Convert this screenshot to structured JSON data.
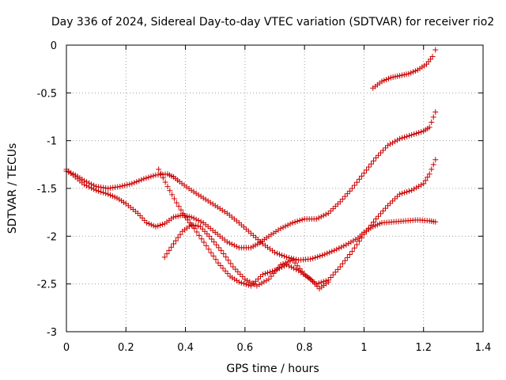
{
  "chart_data": {
    "type": "scatter",
    "title": "Day 336 of 2024, Sidereal Day-to-day VTEC variation (SDTVAR) for receiver rio2",
    "xlabel": "GPS time / hours",
    "ylabel": "SDTVAR / TECUs",
    "xlim": [
      0,
      1.4
    ],
    "ylim": [
      -3,
      0
    ],
    "x_ticks": [
      0,
      0.2,
      0.4,
      0.6,
      0.8,
      1,
      1.2,
      1.4
    ],
    "x_tick_labels": [
      "0",
      "0.2",
      "0.4",
      "0.6",
      "0.8",
      "1",
      "1.2",
      "1.4"
    ],
    "y_ticks": [
      0,
      -0.5,
      -1,
      -1.5,
      -2,
      -2.5,
      -3
    ],
    "y_tick_labels": [
      "0",
      "-0.5",
      "-1",
      "-1.5",
      "-2",
      "-2.5",
      "-3"
    ],
    "grid": true,
    "marker": "plus",
    "colors": {
      "series": "#cc0000",
      "grid": "#a0a0a0",
      "axis": "#000000"
    },
    "series": [
      {
        "points": [
          [
            0,
            -1.32
          ],
          [
            0.03,
            -1.36
          ],
          [
            0.06,
            -1.42
          ],
          [
            0.1,
            -1.48
          ],
          [
            0.14,
            -1.5
          ],
          [
            0.18,
            -1.48
          ],
          [
            0.22,
            -1.45
          ],
          [
            0.26,
            -1.4
          ],
          [
            0.3,
            -1.36
          ],
          [
            0.34,
            -1.35
          ],
          [
            0.36,
            -1.38
          ],
          [
            0.38,
            -1.43
          ],
          [
            0.42,
            -1.52
          ],
          [
            0.46,
            -1.6
          ],
          [
            0.5,
            -1.68
          ],
          [
            0.54,
            -1.76
          ],
          [
            0.58,
            -1.86
          ],
          [
            0.62,
            -1.97
          ],
          [
            0.66,
            -2.08
          ],
          [
            0.7,
            -2.17
          ],
          [
            0.74,
            -2.22
          ],
          [
            0.78,
            -2.25
          ],
          [
            0.82,
            -2.24
          ],
          [
            0.86,
            -2.2
          ],
          [
            0.9,
            -2.15
          ],
          [
            0.94,
            -2.09
          ],
          [
            0.98,
            -2.02
          ],
          [
            1.0,
            -1.96
          ],
          [
            1.03,
            -1.9
          ],
          [
            1.06,
            -1.86
          ],
          [
            1.1,
            -1.85
          ],
          [
            1.14,
            -1.84
          ],
          [
            1.18,
            -1.83
          ],
          [
            1.22,
            -1.84
          ],
          [
            1.24,
            -1.85
          ]
        ]
      },
      {
        "points": [
          [
            0,
            -1.3
          ],
          [
            0.03,
            -1.38
          ],
          [
            0.06,
            -1.46
          ],
          [
            0.1,
            -1.52
          ],
          [
            0.14,
            -1.56
          ],
          [
            0.17,
            -1.6
          ],
          [
            0.2,
            -1.66
          ],
          [
            0.24,
            -1.76
          ],
          [
            0.27,
            -1.86
          ],
          [
            0.3,
            -1.9
          ],
          [
            0.33,
            -1.87
          ],
          [
            0.36,
            -1.8
          ],
          [
            0.39,
            -1.78
          ],
          [
            0.42,
            -1.8
          ],
          [
            0.46,
            -1.86
          ],
          [
            0.5,
            -1.96
          ],
          [
            0.54,
            -2.06
          ],
          [
            0.58,
            -2.12
          ],
          [
            0.62,
            -2.12
          ],
          [
            0.65,
            -2.07
          ],
          [
            0.68,
            -2.0
          ],
          [
            0.72,
            -1.92
          ],
          [
            0.76,
            -1.86
          ],
          [
            0.8,
            -1.82
          ],
          [
            0.84,
            -1.82
          ],
          [
            0.88,
            -1.76
          ],
          [
            0.92,
            -1.64
          ],
          [
            0.96,
            -1.5
          ],
          [
            1.0,
            -1.34
          ],
          [
            1.04,
            -1.18
          ],
          [
            1.08,
            -1.05
          ],
          [
            1.12,
            -0.98
          ],
          [
            1.16,
            -0.94
          ],
          [
            1.2,
            -0.9
          ],
          [
            1.22,
            -0.86
          ],
          [
            1.24,
            -0.7
          ]
        ]
      },
      {
        "points": [
          [
            0.33,
            -2.22
          ],
          [
            0.36,
            -2.08
          ],
          [
            0.39,
            -1.95
          ],
          [
            0.42,
            -1.88
          ],
          [
            0.45,
            -1.9
          ],
          [
            0.48,
            -2.0
          ],
          [
            0.52,
            -2.15
          ],
          [
            0.56,
            -2.32
          ],
          [
            0.6,
            -2.45
          ],
          [
            0.64,
            -2.52
          ],
          [
            0.68,
            -2.45
          ],
          [
            0.72,
            -2.3
          ],
          [
            0.76,
            -2.25
          ],
          [
            0.8,
            -2.4
          ],
          [
            0.84,
            -2.5
          ],
          [
            0.88,
            -2.46
          ],
          [
            0.92,
            -2.32
          ],
          [
            0.96,
            -2.16
          ],
          [
            1.0,
            -1.98
          ],
          [
            1.04,
            -1.82
          ],
          [
            1.08,
            -1.68
          ],
          [
            1.12,
            -1.56
          ],
          [
            1.16,
            -1.52
          ],
          [
            1.2,
            -1.45
          ],
          [
            1.22,
            -1.35
          ],
          [
            1.24,
            -1.2
          ]
        ]
      },
      {
        "points": [
          [
            0.31,
            -1.3
          ],
          [
            0.34,
            -1.48
          ],
          [
            0.37,
            -1.65
          ],
          [
            0.4,
            -1.8
          ],
          [
            0.43,
            -1.92
          ],
          [
            0.47,
            -2.1
          ],
          [
            0.51,
            -2.28
          ],
          [
            0.55,
            -2.42
          ],
          [
            0.58,
            -2.48
          ],
          [
            0.62,
            -2.52
          ],
          [
            0.66,
            -2.4
          ],
          [
            0.7,
            -2.36
          ],
          [
            0.74,
            -2.3
          ],
          [
            0.78,
            -2.36
          ],
          [
            0.82,
            -2.45
          ],
          [
            0.85,
            -2.55
          ],
          [
            0.88,
            -2.48
          ]
        ]
      },
      {
        "points": [
          [
            1.03,
            -0.45
          ],
          [
            1.06,
            -0.38
          ],
          [
            1.09,
            -0.34
          ],
          [
            1.12,
            -0.32
          ],
          [
            1.15,
            -0.3
          ],
          [
            1.18,
            -0.26
          ],
          [
            1.21,
            -0.2
          ],
          [
            1.23,
            -0.12
          ],
          [
            1.24,
            -0.05
          ]
        ]
      }
    ]
  }
}
